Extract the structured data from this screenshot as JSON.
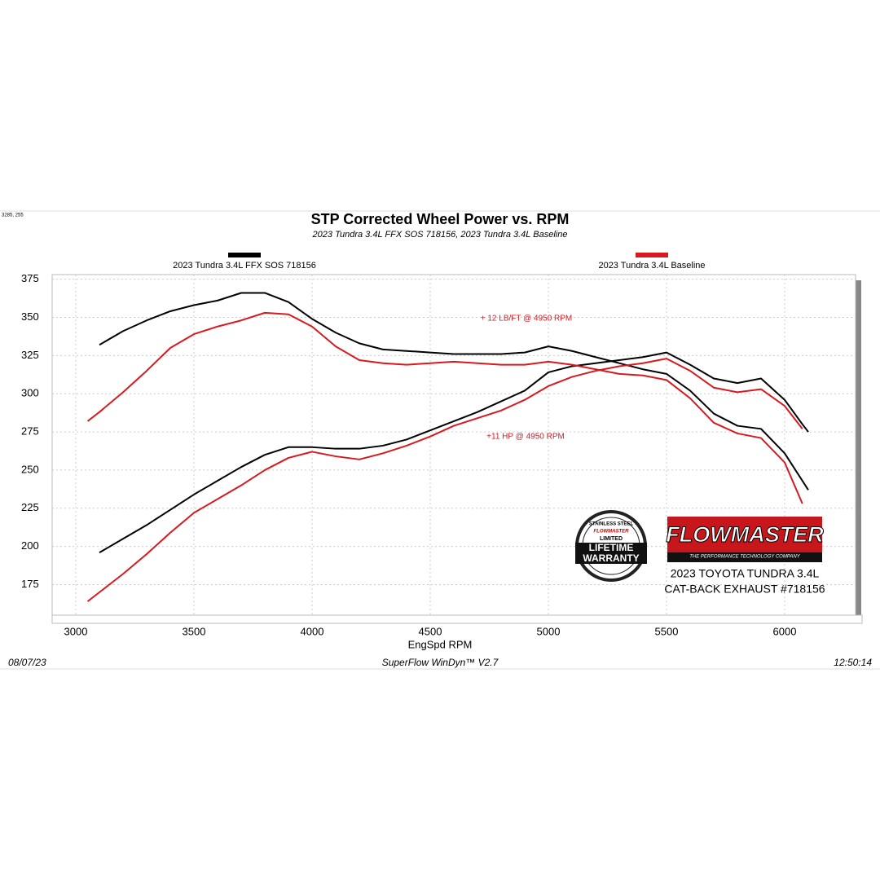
{
  "chart_data": {
    "type": "line",
    "title": "STP Corrected Wheel Power vs. RPM",
    "subtitle": "2023 Tundra 3.4L FFX SOS 718156, 2023 Tundra 3.4L Baseline",
    "corner_note": "3285, 255",
    "xlabel": "EngSpd  RPM",
    "footer": {
      "date": "08/07/23",
      "software": "SuperFlow WinDyn™ V2.7",
      "time": "12:50:14"
    },
    "annotations": [
      "+ 12 LB/FT @ 4950 RPM",
      "+11 HP @ 4950 RPM"
    ],
    "logo": {
      "brand": "FLOWMASTER",
      "tagline": "THE PERFORMANCE TECHNOLOGY COMPANY",
      "line1": "2023 TOYOTA TUNDRA 3.4L",
      "line2": "CAT-BACK EXHAUST #718156",
      "badge": [
        "STAINLESS STEEL",
        "FLOWMASTER",
        "LIMITED",
        "LIFETIME",
        "WARRANTY"
      ]
    },
    "x": [
      3050,
      3100,
      3200,
      3300,
      3400,
      3500,
      3600,
      3700,
      3800,
      3900,
      4000,
      4100,
      4200,
      4300,
      4400,
      4500,
      4600,
      4700,
      4800,
      4900,
      5000,
      5100,
      5200,
      5300,
      5400,
      5500,
      5600,
      5700,
      5800,
      5900,
      6000,
      6075,
      6100
    ],
    "series": [
      {
        "name": "2023 Tundra 3.4L FFX SOS 718156",
        "color": "#000000",
        "torque": [
          null,
          332,
          341,
          348,
          354,
          358,
          361,
          366,
          366,
          360,
          349,
          340,
          333,
          329,
          328,
          327,
          326,
          326,
          326,
          327,
          331,
          328,
          324,
          320,
          316,
          313,
          302,
          287,
          279,
          277,
          261,
          243,
          237
        ],
        "hp": [
          null,
          196,
          205,
          214,
          224,
          234,
          243,
          252,
          260,
          265,
          265,
          264,
          264,
          266,
          270,
          276,
          282,
          288,
          295,
          302,
          314,
          318,
          320,
          322,
          324,
          327,
          319,
          310,
          307,
          310,
          296,
          280,
          275
        ]
      },
      {
        "name": "2023 Tundra 3.4L Baseline",
        "color": "#d71920",
        "torque": [
          282,
          288,
          301,
          315,
          330,
          339,
          344,
          348,
          353,
          352,
          344,
          331,
          322,
          320,
          319,
          320,
          321,
          320,
          319,
          319,
          321,
          319,
          316,
          313,
          312,
          309,
          297,
          281,
          274,
          271,
          255,
          228,
          null
        ],
        "hp": [
          164,
          170,
          182,
          195,
          209,
          222,
          231,
          240,
          250,
          258,
          262,
          259,
          257,
          261,
          266,
          272,
          279,
          284,
          289,
          296,
          305,
          311,
          315,
          318,
          320,
          323,
          315,
          304,
          301,
          303,
          292,
          277,
          null
        ]
      }
    ],
    "xlim": [
      2900,
      6300
    ],
    "xticks": [
      3000,
      3500,
      4000,
      4500,
      5000,
      5500,
      6000
    ],
    "ylim": [
      155,
      378
    ],
    "yticks": [
      175,
      200,
      225,
      250,
      275,
      300,
      325,
      350,
      375
    ],
    "grid": true
  }
}
